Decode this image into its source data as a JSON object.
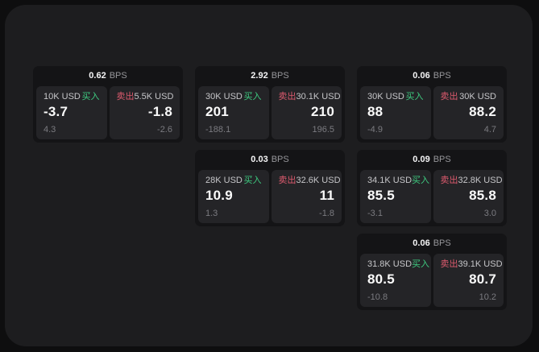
{
  "labels": {
    "bps_unit": "BPS",
    "buy": "买入",
    "sell": "卖出"
  },
  "colors": {
    "page_bg": "#0e0e0f",
    "panel_bg": "#1d1d1f",
    "card_bg": "#141416",
    "tile_bg": "#242427",
    "buy_green": "#3ecb80",
    "sell_red": "#dd5a6e",
    "value_white": "#fafafa",
    "muted_gray": "#7b7b80"
  },
  "cards": [
    {
      "col": 1,
      "row": 1,
      "bps": "0.62",
      "buy": {
        "amount": "10K USD",
        "value": "-3.7",
        "sub": "4.3"
      },
      "sell": {
        "amount": "5.5K USD",
        "value": "-1.8",
        "sub": "-2.6"
      }
    },
    {
      "col": 2,
      "row": 1,
      "bps": "2.92",
      "buy": {
        "amount": "30K USD",
        "value": "201",
        "sub": "-188.1"
      },
      "sell": {
        "amount": "30.1K USD",
        "value": "210",
        "sub": "196.5"
      }
    },
    {
      "col": 3,
      "row": 1,
      "bps": "0.06",
      "buy": {
        "amount": "30K USD",
        "value": "88",
        "sub": "-4.9"
      },
      "sell": {
        "amount": "30K USD",
        "value": "88.2",
        "sub": "4.7"
      }
    },
    {
      "col": 2,
      "row": 2,
      "bps": "0.03",
      "buy": {
        "amount": "28K USD",
        "value": "10.9",
        "sub": "1.3"
      },
      "sell": {
        "amount": "32.6K USD",
        "value": "11",
        "sub": "-1.8"
      }
    },
    {
      "col": 3,
      "row": 2,
      "bps": "0.09",
      "buy": {
        "amount": "34.1K USD",
        "value": "85.5",
        "sub": "-3.1"
      },
      "sell": {
        "amount": "32.8K USD",
        "value": "85.8",
        "sub": "3.0"
      }
    },
    {
      "col": 3,
      "row": 3,
      "bps": "0.06",
      "buy": {
        "amount": "31.8K USD",
        "value": "80.5",
        "sub": "-10.8"
      },
      "sell": {
        "amount": "39.1K USD",
        "value": "80.7",
        "sub": "10.2"
      }
    }
  ]
}
